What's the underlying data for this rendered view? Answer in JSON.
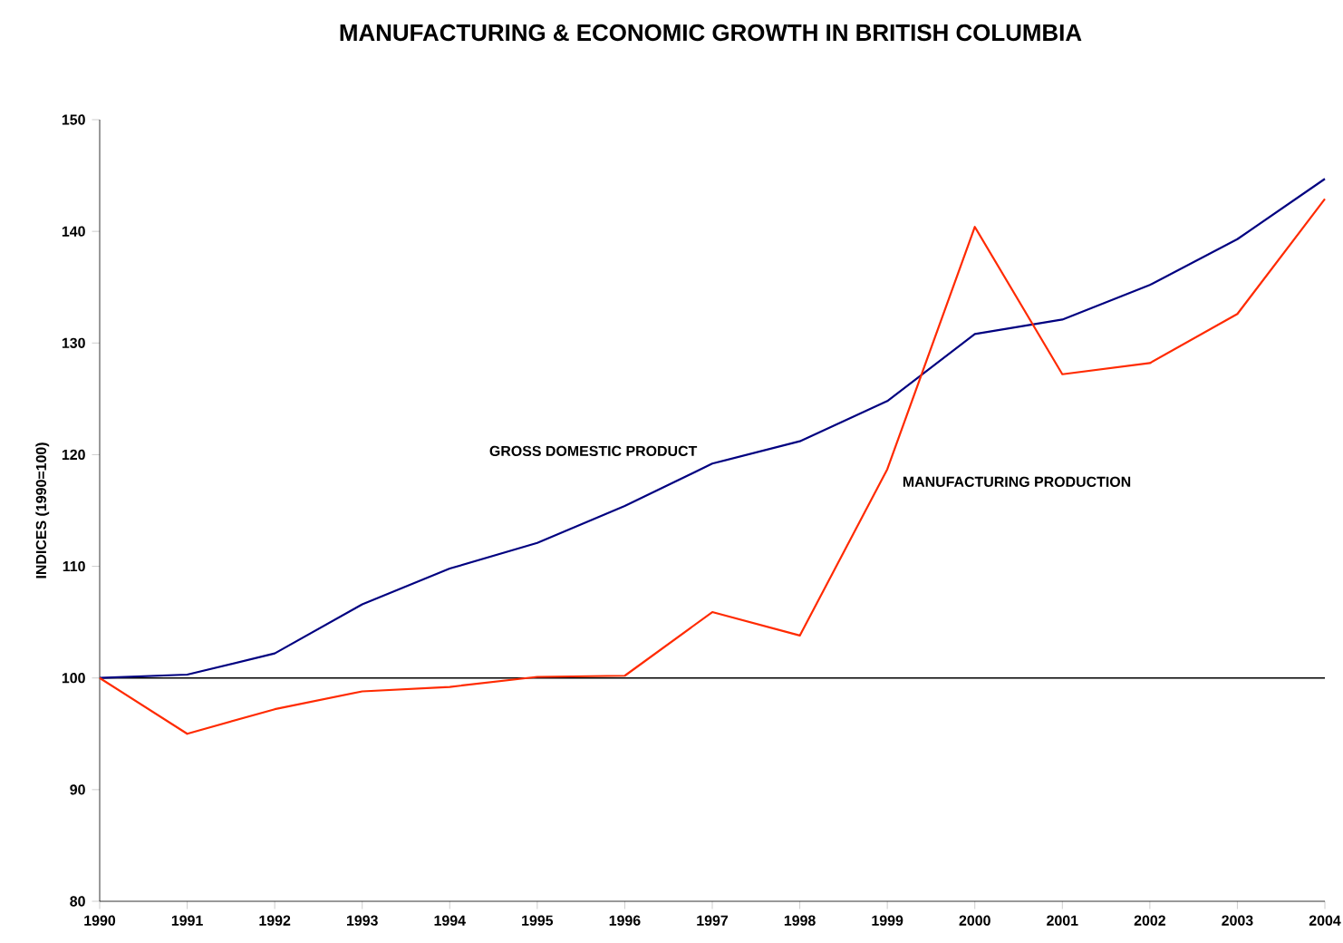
{
  "chart_data": {
    "type": "line",
    "title": "MANUFACTURING & ECONOMIC GROWTH IN BRITISH COLUMBIA",
    "ylabel": "INDICES (1990=100)",
    "x": [
      1990,
      1991,
      1992,
      1993,
      1994,
      1995,
      1996,
      1997,
      1998,
      1999,
      2000,
      2001,
      2002,
      2003,
      2004
    ],
    "series": [
      {
        "name": "GROSS DOMESTIC PRODUCT",
        "color": "#000080",
        "values": [
          100,
          100.3,
          102.2,
          106.6,
          109.8,
          112.1,
          115.4,
          119.2,
          121.2,
          124.8,
          130.8,
          132.1,
          135.2,
          139.3,
          144.7
        ]
      },
      {
        "name": "MANUFACTURING PRODUCTION",
        "color": "#ff2a00",
        "values": [
          100,
          95.0,
          97.2,
          98.8,
          99.2,
          100.1,
          100.2,
          105.9,
          103.8,
          118.7,
          140.4,
          127.2,
          128.2,
          132.6,
          142.9
        ]
      }
    ],
    "xlim": [
      1990,
      2004
    ],
    "ylim": [
      80,
      150
    ],
    "xticks": [
      1990,
      1991,
      1992,
      1993,
      1994,
      1995,
      1996,
      1997,
      1998,
      1999,
      2000,
      2001,
      2002,
      2003,
      2004
    ],
    "yticks": [
      80,
      90,
      100,
      110,
      120,
      130,
      140,
      150
    ],
    "ref_lines": [
      {
        "axis": "y",
        "value": 100,
        "color": "#000000"
      }
    ]
  }
}
